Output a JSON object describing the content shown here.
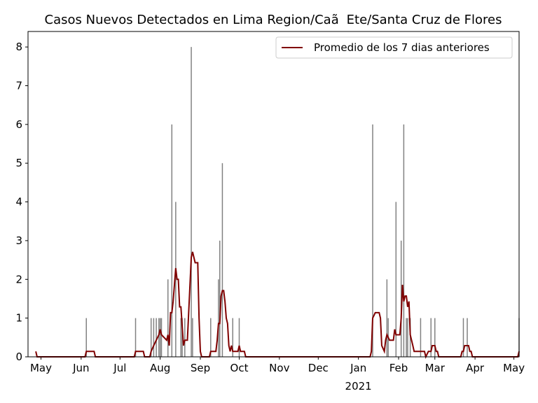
{
  "chart_data": {
    "type": "bar_line",
    "title": "Casos Nuevos Detectados en Lima Region/CaãEte/Santa Cruz de Flores",
    "bars": {
      "color": "#808080",
      "x": [
        "2020-06-05",
        "2020-07-13",
        "2020-07-25",
        "2020-07-27",
        "2020-07-29",
        "2020-07-31",
        "2020-08-01",
        "2020-08-02",
        "2020-08-07",
        "2020-08-10",
        "2020-08-13",
        "2020-08-17",
        "2020-08-18",
        "2020-08-20",
        "2020-08-25",
        "2020-08-26",
        "2020-09-09",
        "2020-09-15",
        "2020-09-16",
        "2020-09-18",
        "2020-09-26",
        "2020-10-01",
        "2021-01-12",
        "2021-01-23",
        "2021-01-24",
        "2021-01-30",
        "2021-02-03",
        "2021-02-05",
        "2021-02-07",
        "2021-02-08",
        "2021-02-10",
        "2021-02-18",
        "2021-02-26",
        "2021-03-01",
        "2021-03-23",
        "2021-03-26",
        "2021-05-05"
      ],
      "values": [
        1,
        1,
        1,
        1,
        1,
        1,
        1,
        1,
        2,
        6,
        4,
        1,
        1,
        1,
        8,
        1,
        1,
        2,
        3,
        5,
        1,
        1,
        6,
        2,
        1,
        4,
        3,
        6,
        1,
        1,
        1,
        1,
        1,
        1,
        1,
        1,
        1
      ]
    },
    "series": [
      {
        "name": "Promedio de los 7 dias anteriores",
        "color": "#800000",
        "x": [
          "2020-04-27",
          "2020-04-28",
          "2020-06-04",
          "2020-06-05",
          "2020-06-11",
          "2020-06-12",
          "2020-07-12",
          "2020-07-13",
          "2020-07-19",
          "2020-07-20",
          "2020-07-24",
          "2020-07-25",
          "2020-07-27",
          "2020-07-29",
          "2020-07-31",
          "2020-08-01",
          "2020-08-02",
          "2020-08-06",
          "2020-08-07",
          "2020-08-08",
          "2020-08-09",
          "2020-08-10",
          "2020-08-11",
          "2020-08-13",
          "2020-08-14",
          "2020-08-15",
          "2020-08-16",
          "2020-08-17",
          "2020-08-19",
          "2020-08-20",
          "2020-08-22",
          "2020-08-25",
          "2020-08-26",
          "2020-08-28",
          "2020-08-30",
          "2020-08-31",
          "2020-09-01",
          "2020-09-02",
          "2020-09-08",
          "2020-09-09",
          "2020-09-13",
          "2020-09-14",
          "2020-09-15",
          "2020-09-16",
          "2020-09-17",
          "2020-09-18",
          "2020-09-19",
          "2020-09-20",
          "2020-09-21",
          "2020-09-22",
          "2020-09-23",
          "2020-09-24",
          "2020-09-25",
          "2020-09-26",
          "2020-09-30",
          "2020-10-01",
          "2020-10-02",
          "2020-10-05",
          "2020-10-06",
          "2021-01-10",
          "2021-01-11",
          "2021-01-12",
          "2021-01-14",
          "2021-01-17",
          "2021-01-18",
          "2021-01-19",
          "2021-01-21",
          "2021-01-22",
          "2021-01-23",
          "2021-01-25",
          "2021-01-28",
          "2021-01-29",
          "2021-01-30",
          "2021-02-02",
          "2021-02-03",
          "2021-02-04",
          "2021-02-05",
          "2021-02-06",
          "2021-02-07",
          "2021-02-08",
          "2021-02-09",
          "2021-02-10",
          "2021-02-11",
          "2021-02-12",
          "2021-02-13",
          "2021-02-21",
          "2021-02-22",
          "2021-02-24",
          "2021-02-26",
          "2021-02-27",
          "2021-03-01",
          "2021-03-02",
          "2021-03-03",
          "2021-03-04",
          "2021-03-21",
          "2021-03-22",
          "2021-03-23",
          "2021-03-24",
          "2021-03-27",
          "2021-03-28",
          "2021-03-29",
          "2021-03-30",
          "2021-05-04",
          "2021-05-05"
        ],
        "values": [
          0.14,
          0,
          0,
          0.14,
          0.14,
          0,
          0,
          0.14,
          0.14,
          0,
          0,
          0.14,
          0.29,
          0.43,
          0.57,
          0.71,
          0.57,
          0.43,
          0.57,
          0.29,
          1.14,
          1.14,
          1.43,
          2.29,
          2.0,
          2.0,
          1.29,
          1.29,
          0.29,
          0.43,
          0.43,
          2.57,
          2.71,
          2.43,
          2.43,
          1.0,
          0.14,
          0,
          0,
          0.14,
          0.14,
          0.43,
          0.86,
          0.86,
          1.57,
          1.71,
          1.71,
          1.43,
          1.0,
          0.86,
          0.29,
          0.14,
          0.29,
          0.14,
          0.14,
          0.29,
          0.14,
          0.14,
          0,
          0,
          0.14,
          1.0,
          1.14,
          1.14,
          1.0,
          0.29,
          0.14,
          0.43,
          0.57,
          0.43,
          0.43,
          0.71,
          0.57,
          0.57,
          1.0,
          1.86,
          1.43,
          1.57,
          1.57,
          1.29,
          1.43,
          0.57,
          0.43,
          0.29,
          0.14,
          0.14,
          0,
          0.14,
          0.14,
          0.29,
          0.29,
          0.14,
          0.14,
          0,
          0,
          0.14,
          0.14,
          0.29,
          0.29,
          0.14,
          0.14,
          0,
          0,
          0.14
        ]
      }
    ],
    "xlim": [
      "2020-04-21",
      "2021-05-05"
    ],
    "xticks": [
      {
        "value": "2020-05-01",
        "label": "May"
      },
      {
        "value": "2020-06-01",
        "label": "Jun"
      },
      {
        "value": "2020-07-01",
        "label": "Jul"
      },
      {
        "value": "2020-08-01",
        "label": "Aug"
      },
      {
        "value": "2020-09-01",
        "label": "Sep"
      },
      {
        "value": "2020-10-01",
        "label": "Oct"
      },
      {
        "value": "2020-11-01",
        "label": "Nov"
      },
      {
        "value": "2020-12-01",
        "label": "Dec"
      },
      {
        "value": "2021-01-01",
        "label": "Jan"
      },
      {
        "value": "2021-02-01",
        "label": "Feb"
      },
      {
        "value": "2021-03-01",
        "label": "Mar"
      },
      {
        "value": "2021-04-01",
        "label": "Apr"
      },
      {
        "value": "2021-05-01",
        "label": "May"
      }
    ],
    "xtick_year": {
      "value": "2021-01-01",
      "label": "2021"
    },
    "ylim": [
      0,
      8.4
    ],
    "yticks": [
      0,
      1,
      2,
      3,
      4,
      5,
      6,
      7,
      8
    ],
    "grid": false,
    "legend": "upper right"
  }
}
